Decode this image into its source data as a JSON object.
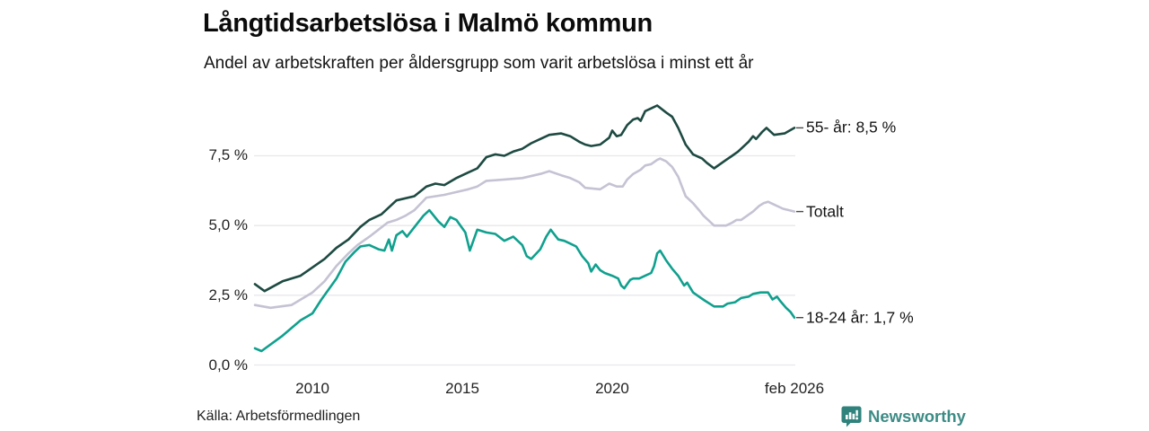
{
  "header": {
    "title": "Långtidsarbetslösa i Malmö kommun",
    "subtitle": "Andel av arbetskraften per åldersgrupp som varit arbetslösa i minst ett år"
  },
  "source": {
    "label": "Källa: Arbetsförmedlingen"
  },
  "branding": {
    "name": "Newsworthy",
    "icon": "newsworthy-speech-bubble-chart-icon",
    "color": "#3d8b85",
    "icon_color": "#2f837c"
  },
  "colors": {
    "series_55": "#1d4a41",
    "series_total": "#c5c2d3",
    "series_youth": "#10a08e",
    "gridline": "#e8e8ec",
    "connector": "#4a4a4a"
  },
  "chart_data": {
    "type": "line",
    "title": "Långtidsarbetslösa i Malmö kommun",
    "subtitle": "Andel av arbetskraften per åldersgrupp som varit arbetslösa i minst ett år",
    "grid": true,
    "legend_position": "right-end-labels",
    "x_axis": {
      "min": 2008.05,
      "max": 2026.08,
      "ticks": [
        {
          "label": "2010",
          "year": 2010
        },
        {
          "label": "2015",
          "year": 2015
        },
        {
          "label": "2020",
          "year": 2020
        },
        {
          "label": "feb 2026",
          "year": 2026.08
        }
      ]
    },
    "y_axis": {
      "unit": "%",
      "min": 0,
      "max": 9.6,
      "ticks": [
        {
          "label": "0,0 %",
          "value": 0
        },
        {
          "label": "2,5 %",
          "value": 2.5
        },
        {
          "label": "5,0 %",
          "value": 5
        },
        {
          "label": "7,5 %",
          "value": 7.5
        }
      ]
    },
    "series": [
      {
        "name": "55- år",
        "end_label": "55- år: 8,5 %",
        "end_value": 8.5,
        "color": "#1d4a41",
        "points": [
          [
            2008.08,
            2.9
          ],
          [
            2008.4,
            2.65
          ],
          [
            2009.0,
            3.0
          ],
          [
            2009.6,
            3.2
          ],
          [
            2010.0,
            3.5
          ],
          [
            2010.4,
            3.8
          ],
          [
            2010.8,
            4.2
          ],
          [
            2011.2,
            4.5
          ],
          [
            2011.6,
            4.95
          ],
          [
            2011.9,
            5.2
          ],
          [
            2012.3,
            5.4
          ],
          [
            2012.8,
            5.9
          ],
          [
            2013.4,
            6.05
          ],
          [
            2013.8,
            6.4
          ],
          [
            2014.1,
            6.5
          ],
          [
            2014.4,
            6.45
          ],
          [
            2014.8,
            6.7
          ],
          [
            2015.2,
            6.9
          ],
          [
            2015.5,
            7.05
          ],
          [
            2015.8,
            7.45
          ],
          [
            2016.1,
            7.55
          ],
          [
            2016.4,
            7.5
          ],
          [
            2016.7,
            7.65
          ],
          [
            2017.0,
            7.75
          ],
          [
            2017.3,
            7.95
          ],
          [
            2017.6,
            8.1
          ],
          [
            2017.9,
            8.25
          ],
          [
            2018.3,
            8.3
          ],
          [
            2018.6,
            8.2
          ],
          [
            2018.9,
            8.0
          ],
          [
            2019.1,
            7.9
          ],
          [
            2019.3,
            7.85
          ],
          [
            2019.6,
            7.9
          ],
          [
            2019.9,
            8.15
          ],
          [
            2020.0,
            8.4
          ],
          [
            2020.15,
            8.2
          ],
          [
            2020.3,
            8.25
          ],
          [
            2020.5,
            8.6
          ],
          [
            2020.7,
            8.8
          ],
          [
            2020.85,
            8.85
          ],
          [
            2020.95,
            8.75
          ],
          [
            2021.1,
            9.1
          ],
          [
            2021.3,
            9.2
          ],
          [
            2021.5,
            9.3
          ],
          [
            2021.8,
            9.05
          ],
          [
            2022.0,
            8.9
          ],
          [
            2022.2,
            8.5
          ],
          [
            2022.45,
            7.9
          ],
          [
            2022.7,
            7.55
          ],
          [
            2023.0,
            7.4
          ],
          [
            2023.15,
            7.25
          ],
          [
            2023.4,
            7.05
          ],
          [
            2023.8,
            7.35
          ],
          [
            2024.0,
            7.5
          ],
          [
            2024.2,
            7.65
          ],
          [
            2024.4,
            7.85
          ],
          [
            2024.55,
            8.0
          ],
          [
            2024.7,
            8.2
          ],
          [
            2024.8,
            8.1
          ],
          [
            2025.0,
            8.35
          ],
          [
            2025.15,
            8.5
          ],
          [
            2025.4,
            8.25
          ],
          [
            2025.75,
            8.3
          ],
          [
            2026.08,
            8.5
          ]
        ]
      },
      {
        "name": "Totalt",
        "end_label": "Totalt",
        "end_value": 5.5,
        "color": "#c5c2d3",
        "points": [
          [
            2008.08,
            2.15
          ],
          [
            2008.6,
            2.05
          ],
          [
            2009.3,
            2.15
          ],
          [
            2010.0,
            2.6
          ],
          [
            2010.4,
            3.0
          ],
          [
            2010.8,
            3.55
          ],
          [
            2011.2,
            4.0
          ],
          [
            2011.5,
            4.3
          ],
          [
            2011.9,
            4.6
          ],
          [
            2012.2,
            4.85
          ],
          [
            2012.5,
            5.1
          ],
          [
            2012.8,
            5.2
          ],
          [
            2013.1,
            5.35
          ],
          [
            2013.4,
            5.55
          ],
          [
            2013.8,
            6.0
          ],
          [
            2014.4,
            6.1
          ],
          [
            2014.8,
            6.2
          ],
          [
            2015.2,
            6.3
          ],
          [
            2015.5,
            6.4
          ],
          [
            2015.8,
            6.6
          ],
          [
            2016.4,
            6.65
          ],
          [
            2017.0,
            6.7
          ],
          [
            2017.6,
            6.85
          ],
          [
            2017.9,
            6.95
          ],
          [
            2018.3,
            6.8
          ],
          [
            2018.6,
            6.7
          ],
          [
            2018.9,
            6.55
          ],
          [
            2019.1,
            6.35
          ],
          [
            2019.6,
            6.3
          ],
          [
            2019.9,
            6.5
          ],
          [
            2020.15,
            6.4
          ],
          [
            2020.35,
            6.4
          ],
          [
            2020.5,
            6.65
          ],
          [
            2020.7,
            6.85
          ],
          [
            2020.95,
            7.0
          ],
          [
            2021.1,
            7.15
          ],
          [
            2021.3,
            7.2
          ],
          [
            2021.5,
            7.35
          ],
          [
            2021.6,
            7.4
          ],
          [
            2021.8,
            7.3
          ],
          [
            2022.0,
            7.1
          ],
          [
            2022.2,
            6.75
          ],
          [
            2022.45,
            6.05
          ],
          [
            2022.7,
            5.8
          ],
          [
            2022.9,
            5.55
          ],
          [
            2023.05,
            5.35
          ],
          [
            2023.2,
            5.2
          ],
          [
            2023.4,
            5.0
          ],
          [
            2023.8,
            5.0
          ],
          [
            2024.0,
            5.1
          ],
          [
            2024.15,
            5.2
          ],
          [
            2024.3,
            5.2
          ],
          [
            2024.5,
            5.35
          ],
          [
            2024.7,
            5.5
          ],
          [
            2024.9,
            5.7
          ],
          [
            2025.05,
            5.8
          ],
          [
            2025.2,
            5.85
          ],
          [
            2025.4,
            5.75
          ],
          [
            2025.7,
            5.6
          ],
          [
            2025.9,
            5.55
          ],
          [
            2026.08,
            5.5
          ]
        ]
      },
      {
        "name": "18-24 år",
        "end_label": "18-24 år: 1,7 %",
        "end_value": 1.7,
        "color": "#10a08e",
        "points": [
          [
            2008.08,
            0.6
          ],
          [
            2008.3,
            0.5
          ],
          [
            2009.0,
            1.05
          ],
          [
            2009.6,
            1.6
          ],
          [
            2010.0,
            1.85
          ],
          [
            2010.3,
            2.35
          ],
          [
            2010.8,
            3.1
          ],
          [
            2011.1,
            3.7
          ],
          [
            2011.4,
            4.05
          ],
          [
            2011.6,
            4.25
          ],
          [
            2011.9,
            4.3
          ],
          [
            2012.2,
            4.15
          ],
          [
            2012.4,
            4.1
          ],
          [
            2012.55,
            4.5
          ],
          [
            2012.65,
            4.1
          ],
          [
            2012.8,
            4.65
          ],
          [
            2013.0,
            4.8
          ],
          [
            2013.15,
            4.6
          ],
          [
            2013.7,
            5.35
          ],
          [
            2013.9,
            5.55
          ],
          [
            2014.2,
            5.15
          ],
          [
            2014.4,
            4.95
          ],
          [
            2014.6,
            5.3
          ],
          [
            2014.8,
            5.2
          ],
          [
            2015.1,
            4.75
          ],
          [
            2015.25,
            4.1
          ],
          [
            2015.5,
            4.85
          ],
          [
            2015.8,
            4.75
          ],
          [
            2016.1,
            4.7
          ],
          [
            2016.4,
            4.45
          ],
          [
            2016.7,
            4.6
          ],
          [
            2017.0,
            4.3
          ],
          [
            2017.15,
            3.9
          ],
          [
            2017.3,
            3.8
          ],
          [
            2017.6,
            4.15
          ],
          [
            2017.8,
            4.6
          ],
          [
            2017.95,
            4.85
          ],
          [
            2018.2,
            4.5
          ],
          [
            2018.4,
            4.45
          ],
          [
            2018.6,
            4.35
          ],
          [
            2018.8,
            4.25
          ],
          [
            2019.0,
            3.9
          ],
          [
            2019.2,
            3.65
          ],
          [
            2019.3,
            3.35
          ],
          [
            2019.45,
            3.6
          ],
          [
            2019.6,
            3.4
          ],
          [
            2019.75,
            3.3
          ],
          [
            2020.0,
            3.2
          ],
          [
            2020.2,
            3.1
          ],
          [
            2020.3,
            2.85
          ],
          [
            2020.4,
            2.75
          ],
          [
            2020.6,
            3.05
          ],
          [
            2020.7,
            3.1
          ],
          [
            2020.9,
            3.1
          ],
          [
            2021.1,
            3.2
          ],
          [
            2021.3,
            3.3
          ],
          [
            2021.4,
            3.55
          ],
          [
            2021.5,
            4.0
          ],
          [
            2021.6,
            4.1
          ],
          [
            2021.8,
            3.75
          ],
          [
            2022.0,
            3.45
          ],
          [
            2022.2,
            3.2
          ],
          [
            2022.4,
            2.85
          ],
          [
            2022.5,
            2.95
          ],
          [
            2022.7,
            2.6
          ],
          [
            2022.9,
            2.45
          ],
          [
            2023.1,
            2.3
          ],
          [
            2023.4,
            2.1
          ],
          [
            2023.7,
            2.1
          ],
          [
            2023.85,
            2.2
          ],
          [
            2024.1,
            2.25
          ],
          [
            2024.3,
            2.4
          ],
          [
            2024.55,
            2.45
          ],
          [
            2024.7,
            2.55
          ],
          [
            2024.95,
            2.6
          ],
          [
            2025.2,
            2.6
          ],
          [
            2025.35,
            2.35
          ],
          [
            2025.5,
            2.45
          ],
          [
            2025.6,
            2.3
          ],
          [
            2025.8,
            2.05
          ],
          [
            2025.95,
            1.9
          ],
          [
            2026.08,
            1.7
          ]
        ]
      }
    ]
  }
}
